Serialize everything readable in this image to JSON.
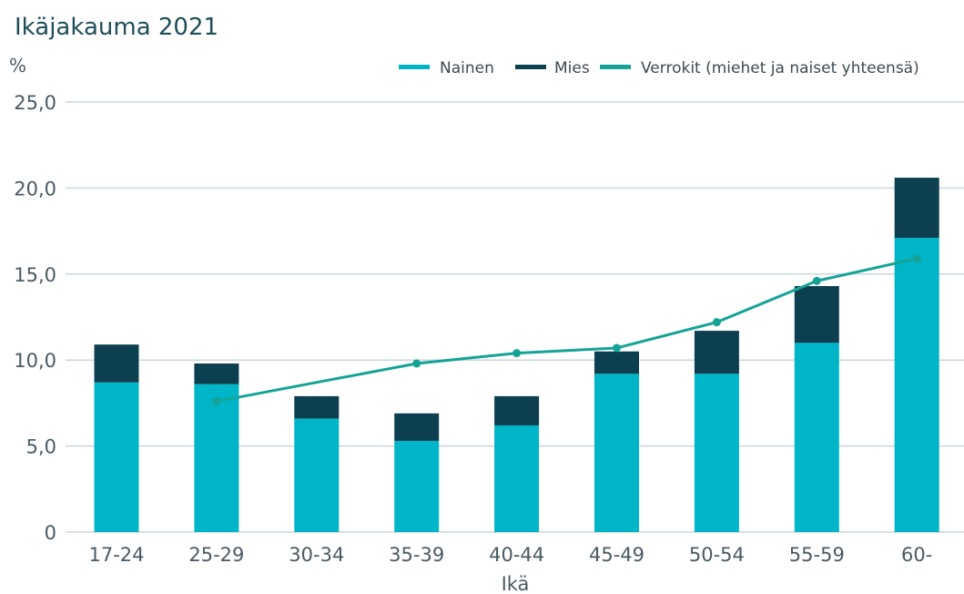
{
  "chart_data": {
    "type": "bar",
    "title": "Ikäjakauma 2021",
    "ylabel": "%",
    "xlabel": "Ikä",
    "ylim": [
      0,
      25
    ],
    "yticks": [
      "0",
      "5,0",
      "10,0",
      "15,0",
      "20,0",
      "25,0"
    ],
    "ytick_values": [
      0,
      5,
      10,
      15,
      20,
      25
    ],
    "grid": true,
    "legend_position": "top-right",
    "stacked": true,
    "categories": [
      "17-24",
      "25-29",
      "30-34",
      "35-39",
      "40-44",
      "45-49",
      "50-54",
      "55-59",
      "60-"
    ],
    "series": [
      {
        "name": "Nainen",
        "type": "bar",
        "color": "#00b5c8",
        "values": [
          8.7,
          8.6,
          6.6,
          5.3,
          6.2,
          9.2,
          9.2,
          11.0,
          17.1
        ]
      },
      {
        "name": "Mies",
        "type": "bar",
        "color": "#0c3f4f",
        "values": [
          2.2,
          1.2,
          1.3,
          1.6,
          1.7,
          1.3,
          2.5,
          3.3,
          3.5
        ]
      },
      {
        "name": "Verrokit (miehet ja naiset yhteensä)",
        "type": "line",
        "color": "#16a397",
        "values": [
          null,
          7.6,
          null,
          9.8,
          10.4,
          10.7,
          12.2,
          14.6,
          15.9
        ]
      }
    ]
  }
}
